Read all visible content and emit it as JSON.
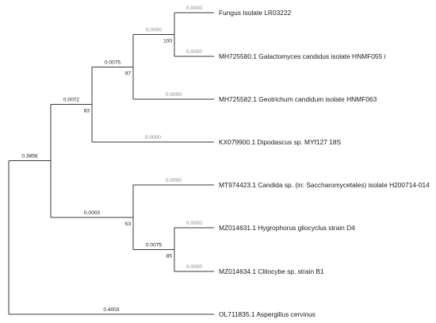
{
  "tree": {
    "taxa": [
      {
        "id": "t1",
        "label": "Fungus Isolate LR03222",
        "branch_length": "0.0000"
      },
      {
        "id": "t2",
        "label": "MH725580.1 Galactomyces candidus isolate HNMF055 i",
        "branch_length": "0.0000"
      },
      {
        "id": "t3",
        "label": "MH725582.1 Geotrichum candidum isolate HNMF063",
        "branch_length": "0.0000"
      },
      {
        "id": "t4",
        "label": "KX079900.1 Dipodascus sp. MYf127 18S",
        "branch_length": "0.0000"
      },
      {
        "id": "t5",
        "label": "MT974423.1 Candida sp. (in: Saccharomycetales) isolate H200714-014",
        "branch_length": "0.0000"
      },
      {
        "id": "t6",
        "label": "MZ014631.1 Hygrophorus gliocyclus strain D4",
        "branch_length": "0.0000"
      },
      {
        "id": "t7",
        "label": "MZ014634.1 Clitocybe sp. strain B1",
        "branch_length": "0.0000"
      },
      {
        "id": "t8",
        "label": "OL711835.1 Aspergillus cervinus",
        "branch_length": "0.4003"
      }
    ],
    "internal_nodes": [
      {
        "id": "n_t1t2",
        "branch_length": "0.0000",
        "bootstrap": "100"
      },
      {
        "id": "n_t1t3",
        "branch_length": "0.0075",
        "bootstrap": "97"
      },
      {
        "id": "n_t1t4",
        "branch_length": "0.0072",
        "bootstrap": "83"
      },
      {
        "id": "n_t6t7",
        "branch_length": "0.0075",
        "bootstrap": "85"
      },
      {
        "id": "n_t5t7",
        "branch_length": "0.0003",
        "bootstrap": "53"
      },
      {
        "id": "n_in",
        "branch_length": "0.3856",
        "bootstrap": ""
      }
    ]
  }
}
